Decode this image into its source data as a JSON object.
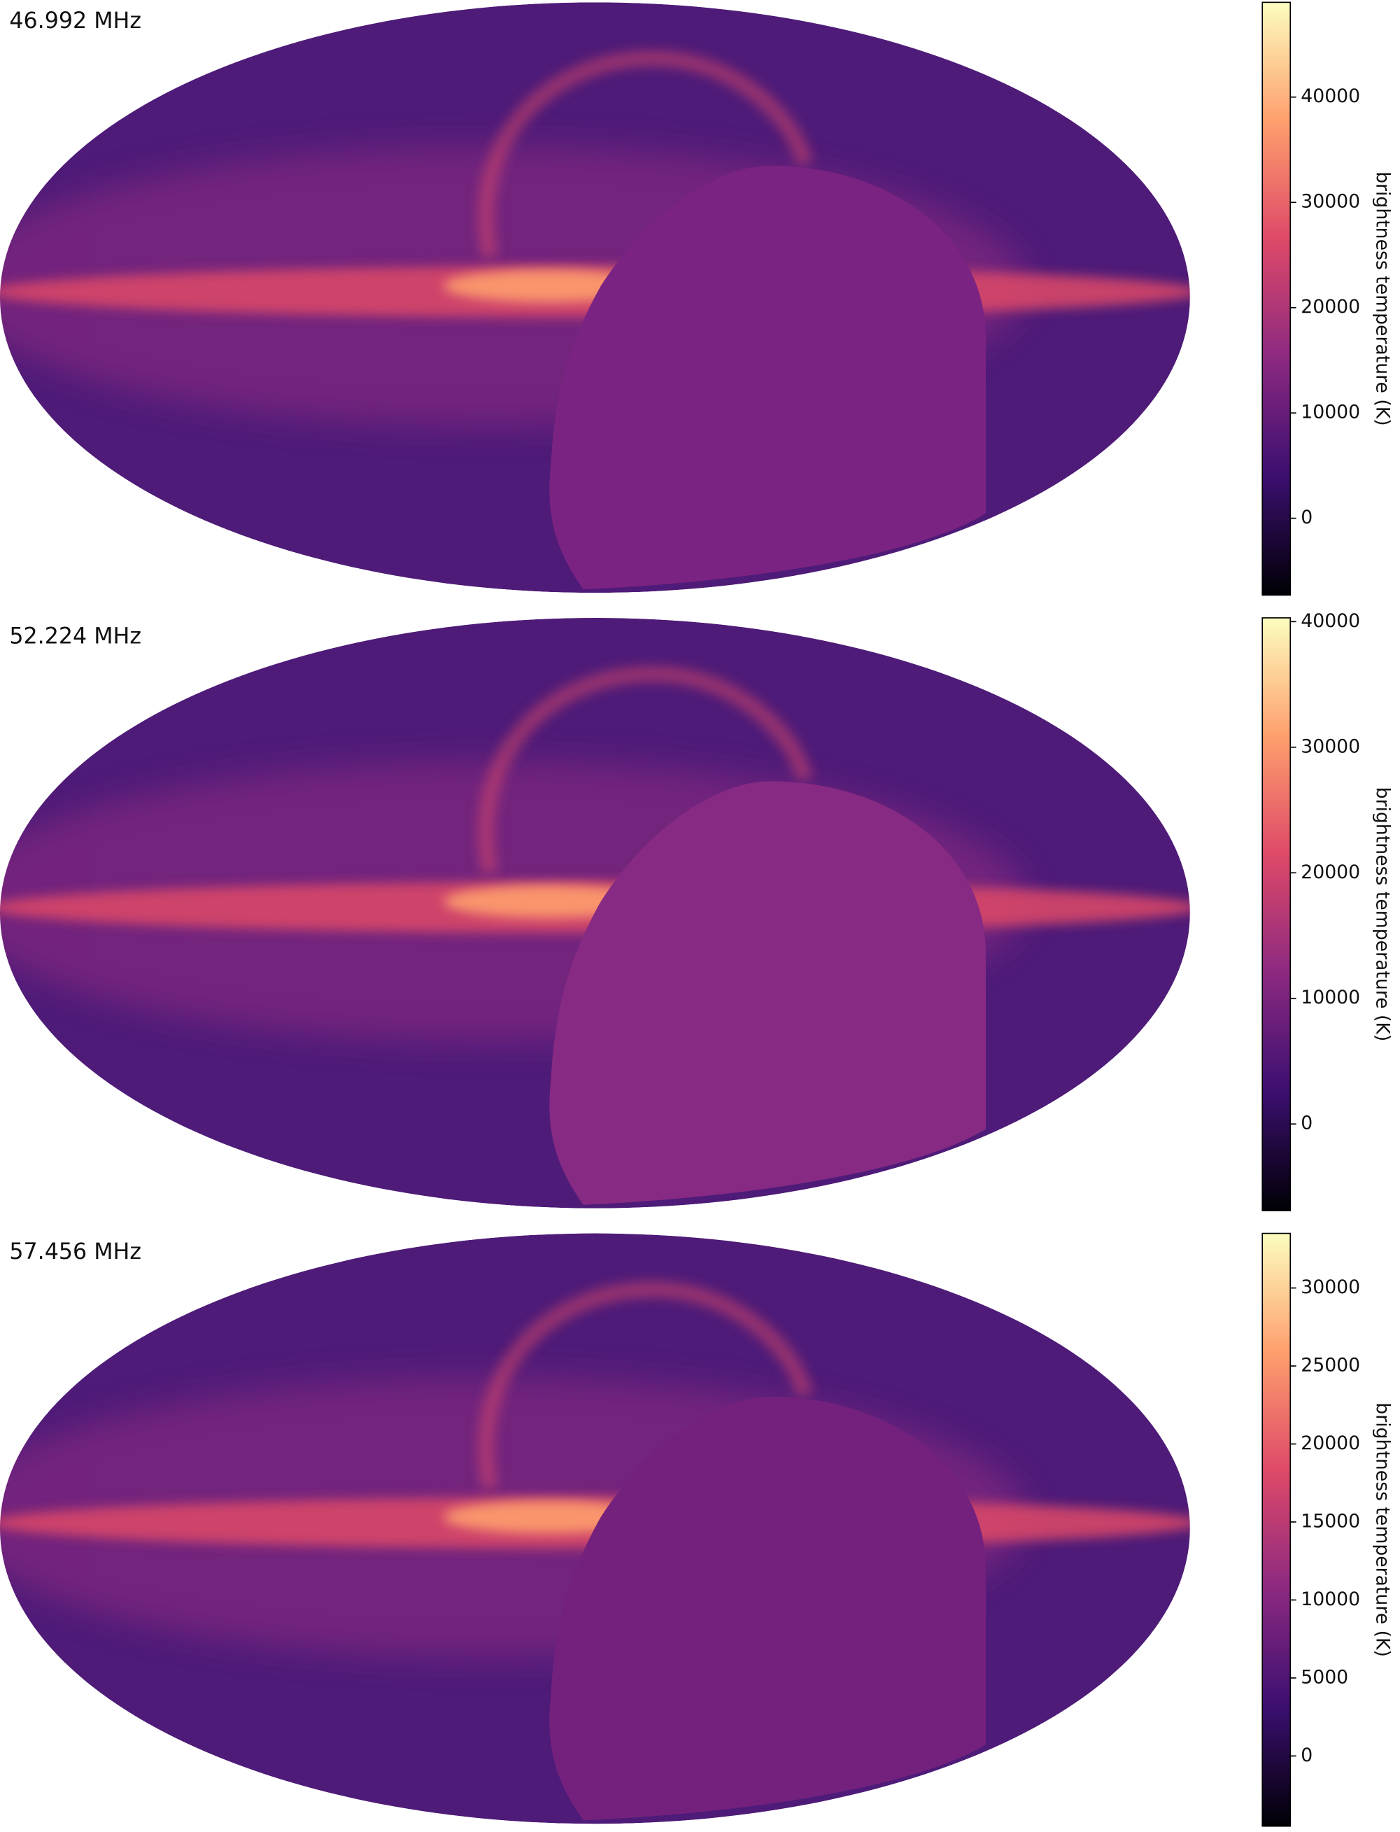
{
  "chart_data": [
    {
      "type": "heatmap",
      "title": "46.992 MHz",
      "colorbar_label": "brightness temperature (K)",
      "colormap": "magma",
      "clim": [
        -7300,
        49000
      ],
      "cticks": [
        0,
        10000,
        20000,
        30000,
        40000
      ],
      "mask_color": "#7b2382"
    },
    {
      "type": "heatmap",
      "title": "52.224 MHz",
      "colorbar_label": "brightness temperature (K)",
      "colormap": "magma",
      "clim": [
        -6900,
        40300
      ],
      "cticks": [
        0,
        10000,
        20000,
        30000,
        40000
      ],
      "mask_color": "#862a84"
    },
    {
      "type": "heatmap",
      "title": "57.456 MHz",
      "colorbar_label": "brightness temperature (K)",
      "colormap": "magma",
      "clim": [
        -4500,
        33500
      ],
      "cticks": [
        0,
        5000,
        10000,
        15000,
        20000,
        25000,
        30000
      ],
      "mask_color": "#74217e"
    }
  ]
}
